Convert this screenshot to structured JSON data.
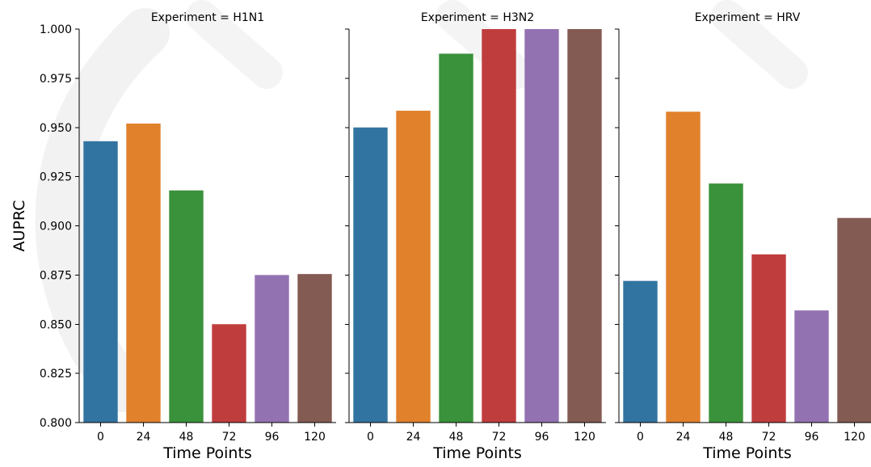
{
  "chart_data": {
    "type": "bar",
    "categories": [
      "0",
      "24",
      "48",
      "72",
      "96",
      "120"
    ],
    "ylabel": "AUPRC",
    "xlabel": "Time Points",
    "ylim": [
      0.8,
      1.0
    ],
    "y_ticks": [
      "0.800",
      "0.825",
      "0.850",
      "0.875",
      "0.900",
      "0.925",
      "0.950",
      "0.975",
      "1.000"
    ],
    "y_tick_values": [
      0.8,
      0.825,
      0.85,
      0.875,
      0.9,
      0.925,
      0.95,
      0.975,
      1.0
    ],
    "colors": [
      "#3274a1",
      "#e1812c",
      "#3a923a",
      "#c03d3e",
      "#9372b2",
      "#845b53"
    ],
    "grid": false,
    "panels": [
      {
        "title": "Experiment = H1N1",
        "values": [
          0.943,
          0.952,
          0.918,
          0.85,
          0.875,
          0.8755
        ]
      },
      {
        "title": "Experiment = H3N2",
        "values": [
          0.95,
          0.9585,
          0.9875,
          1.0,
          1.0,
          1.0
        ]
      },
      {
        "title": "Experiment = HRV",
        "values": [
          0.872,
          0.958,
          0.9215,
          0.8855,
          0.857,
          0.904
        ]
      }
    ]
  }
}
